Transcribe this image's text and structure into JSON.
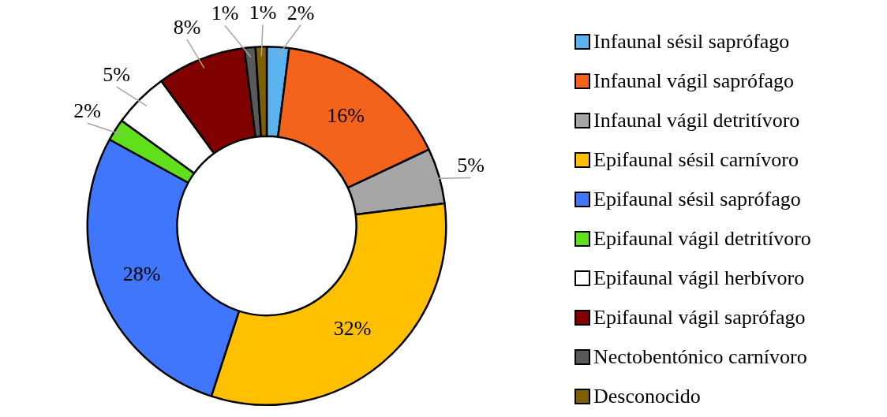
{
  "chart_data": {
    "type": "donut",
    "categories": [
      "Infaunal sésil saprófago",
      "Infaunal vágil saprófago",
      "Infaunal vágil detritívoro",
      "Epifaunal sésil carnívoro",
      "Epifaunal sésil saprófago",
      "Epifaunal vágil detritívoro",
      "Epifaunal vágil herbívoro",
      "Epifaunal vágil saprófago",
      "Nectobentónico carnívoro",
      "Desconocido"
    ],
    "values": [
      2,
      16,
      5,
      32,
      28,
      2,
      5,
      8,
      1,
      1
    ],
    "colors": [
      "#5bb4f0",
      "#f4631c",
      "#a6a6a6",
      "#ffc000",
      "#3f76fb",
      "#5fe01a",
      "#ffffff",
      "#800000",
      "#595959",
      "#7f6000"
    ],
    "value_labels": [
      "2%",
      "16%",
      "5%",
      "32%",
      "28%",
      "2%",
      "5%",
      "8%",
      "1%",
      "1%"
    ],
    "legend": "right"
  }
}
